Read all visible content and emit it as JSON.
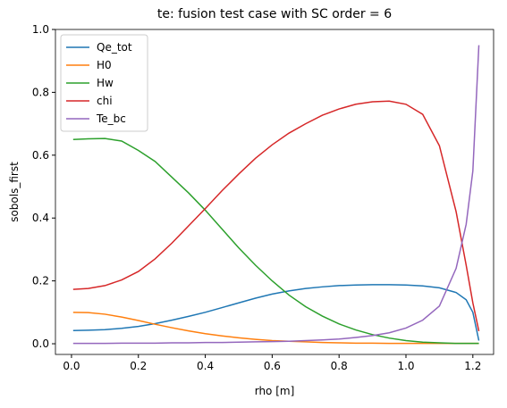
{
  "chart_data": {
    "type": "line",
    "title": "te: fusion test case with SC order = 6",
    "xlabel": "rho [m]",
    "ylabel": "sobols_first",
    "x": [
      0.005,
      0.05,
      0.1,
      0.15,
      0.2,
      0.25,
      0.3,
      0.35,
      0.4,
      0.45,
      0.5,
      0.55,
      0.6,
      0.65,
      0.7,
      0.75,
      0.8,
      0.85,
      0.9,
      0.95,
      1.0,
      1.05,
      1.1,
      1.15,
      1.18,
      1.2,
      1.218
    ],
    "series": [
      {
        "name": "Qe_tot",
        "color": "#1f77b4",
        "values": [
          0.042,
          0.043,
          0.045,
          0.049,
          0.055,
          0.064,
          0.075,
          0.087,
          0.1,
          0.115,
          0.13,
          0.145,
          0.158,
          0.168,
          0.176,
          0.181,
          0.185,
          0.187,
          0.188,
          0.188,
          0.187,
          0.184,
          0.178,
          0.163,
          0.14,
          0.1,
          0.01
        ]
      },
      {
        "name": "H0",
        "color": "#ff7f0e",
        "values": [
          0.1,
          0.099,
          0.094,
          0.085,
          0.074,
          0.062,
          0.051,
          0.041,
          0.032,
          0.025,
          0.019,
          0.014,
          0.01,
          0.008,
          0.006,
          0.004,
          0.003,
          0.002,
          0.002,
          0.001,
          0.001,
          0.001,
          0.001,
          0.001,
          0.001,
          0.001,
          0.001
        ]
      },
      {
        "name": "Hw",
        "color": "#2ca02c",
        "values": [
          0.65,
          0.652,
          0.653,
          0.645,
          0.615,
          0.58,
          0.53,
          0.48,
          0.425,
          0.365,
          0.305,
          0.25,
          0.2,
          0.155,
          0.118,
          0.088,
          0.063,
          0.044,
          0.029,
          0.018,
          0.01,
          0.005,
          0.003,
          0.001,
          0.001,
          0.001,
          0.001
        ]
      },
      {
        "name": "chi",
        "color": "#d62728",
        "values": [
          0.173,
          0.176,
          0.185,
          0.203,
          0.23,
          0.27,
          0.32,
          0.375,
          0.43,
          0.487,
          0.54,
          0.59,
          0.633,
          0.67,
          0.7,
          0.727,
          0.747,
          0.762,
          0.77,
          0.772,
          0.762,
          0.73,
          0.63,
          0.42,
          0.25,
          0.13,
          0.04
        ]
      },
      {
        "name": "Te_bc",
        "color": "#9467bd",
        "values": [
          0.001,
          0.001,
          0.001,
          0.002,
          0.002,
          0.002,
          0.003,
          0.003,
          0.004,
          0.004,
          0.005,
          0.006,
          0.007,
          0.008,
          0.01,
          0.012,
          0.015,
          0.02,
          0.026,
          0.035,
          0.05,
          0.075,
          0.12,
          0.24,
          0.38,
          0.55,
          0.95
        ]
      }
    ],
    "xlim": [
      -0.048,
      1.262
    ],
    "xticks": [
      {
        "value": 0,
        "label": "0.0"
      },
      0.2,
      0.4,
      0.6,
      0.8,
      {
        "value": 1,
        "label": "1.0"
      },
      1.2
    ],
    "ylim": [
      -0.034,
      1.0
    ],
    "yticks": [
      {
        "value": 0,
        "label": "0.0"
      },
      0.2,
      0.4,
      0.6,
      0.8,
      {
        "value": 1,
        "label": "1.0"
      }
    ],
    "legend": "upper left",
    "grid": false
  }
}
